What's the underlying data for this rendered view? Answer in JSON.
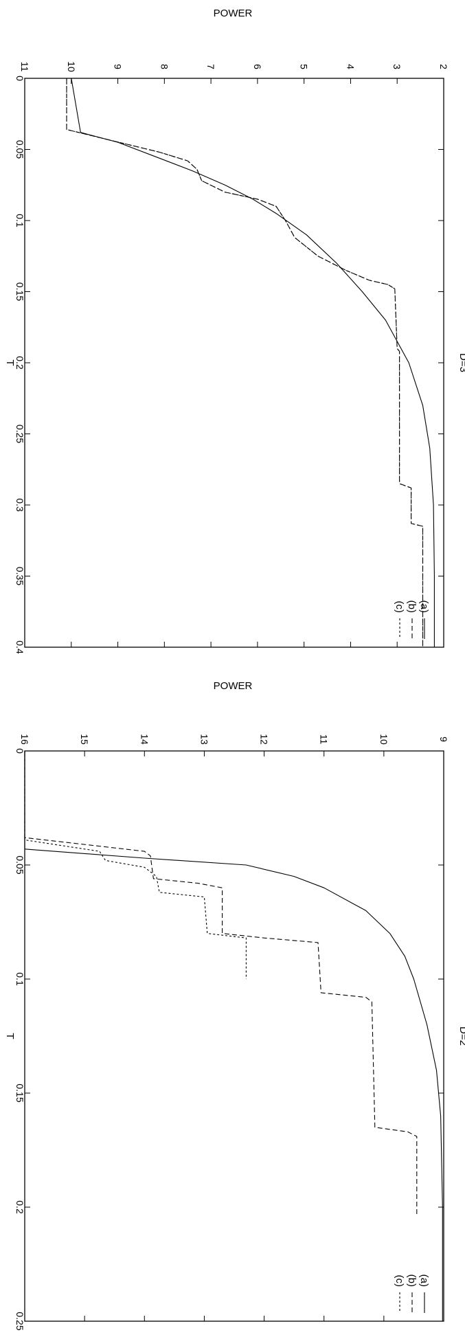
{
  "figure": {
    "panels": [
      {
        "title": "D=3",
        "xlabel": "T",
        "ylabel": "POWER",
        "xticks": [
          "0",
          "0.05",
          "0.1",
          "0.15",
          "0.2",
          "0.25",
          "0.3",
          "0.35",
          "0.4"
        ],
        "yticks": [
          "2",
          "3",
          "4",
          "5",
          "6",
          "7",
          "8",
          "9",
          "10",
          "11"
        ],
        "legend": [
          "(a)",
          "(b)",
          "(c)"
        ]
      },
      {
        "title": "D=2",
        "xlabel": "T",
        "ylabel": "POWER",
        "xticks": [
          "0",
          "0.05",
          "0.1",
          "0.15",
          "0.2",
          "0.25"
        ],
        "yticks": [
          "9",
          "10",
          "11",
          "12",
          "13",
          "14",
          "15",
          "16"
        ],
        "legend": [
          "(a)",
          "(b)",
          "(c)"
        ]
      }
    ]
  },
  "chart_data": [
    {
      "type": "line",
      "title": "D=3",
      "xlabel": "T",
      "ylabel": "POWER",
      "xlim": [
        0,
        0.4
      ],
      "ylim": [
        2,
        11
      ],
      "rotated": "90deg-clockwise",
      "legend_position": "bottom-right (rotated)",
      "grid": false,
      "series": [
        {
          "name": "(a)",
          "dash": "solid",
          "x": [
            0,
            0.038,
            0.045,
            0.055,
            0.065,
            0.075,
            0.085,
            0.095,
            0.11,
            0.13,
            0.15,
            0.17,
            0.2,
            0.23,
            0.26,
            0.3,
            0.35,
            0.4
          ],
          "y": [
            10.0,
            9.8,
            9.0,
            8.2,
            7.4,
            6.7,
            6.1,
            5.6,
            4.95,
            4.3,
            3.75,
            3.25,
            2.75,
            2.45,
            2.3,
            2.22,
            2.2,
            2.2
          ]
        },
        {
          "name": "(b)",
          "dash": "long-dash",
          "x": [
            0,
            0.036,
            0.044,
            0.052,
            0.058,
            0.064,
            0.072,
            0.08,
            0.085,
            0.09,
            0.1,
            0.112,
            0.125,
            0.135,
            0.142,
            0.145,
            0.148,
            0.19,
            0.192,
            0.285,
            0.288,
            0.313,
            0.315,
            0.4
          ],
          "y": [
            10.1,
            10.1,
            9.1,
            8.1,
            7.5,
            7.3,
            7.2,
            6.7,
            6.0,
            5.6,
            5.4,
            5.2,
            4.7,
            4.1,
            3.6,
            3.2,
            3.05,
            3.0,
            2.95,
            2.95,
            2.7,
            2.7,
            2.45,
            2.45
          ]
        },
        {
          "name": "(c)",
          "dash": "short-dash",
          "x": [
            0,
            0.036,
            0.044,
            0.052,
            0.058,
            0.064,
            0.072,
            0.08,
            0.085,
            0.09,
            0.1,
            0.112,
            0.125,
            0.135,
            0.142,
            0.145,
            0.148,
            0.19,
            0.192,
            0.285,
            0.288,
            0.313,
            0.315,
            0.4
          ],
          "y": [
            10.1,
            10.1,
            9.1,
            8.1,
            7.5,
            7.3,
            7.2,
            6.7,
            6.0,
            5.6,
            5.4,
            5.2,
            4.7,
            4.1,
            3.6,
            3.2,
            3.05,
            3.0,
            2.95,
            2.95,
            2.7,
            2.7,
            2.45,
            2.45
          ]
        }
      ]
    },
    {
      "type": "line",
      "title": "D=2",
      "xlabel": "T",
      "ylabel": "POWER",
      "xlim": [
        0,
        0.25
      ],
      "ylim": [
        9,
        16
      ],
      "rotated": "90deg-clockwise",
      "legend_position": "bottom-right (rotated)",
      "grid": false,
      "series": [
        {
          "name": "(a)",
          "dash": "solid",
          "x": [
            0,
            0.043,
            0.047,
            0.05,
            0.055,
            0.06,
            0.07,
            0.08,
            0.09,
            0.1,
            0.12,
            0.14,
            0.16,
            0.2,
            0.25
          ],
          "y": [
            16.0,
            16.0,
            14.0,
            12.3,
            11.5,
            11.0,
            10.3,
            9.9,
            9.65,
            9.5,
            9.28,
            9.12,
            9.05,
            9.02,
            9.02
          ]
        },
        {
          "name": "(b)",
          "dash": "long-dash",
          "x": [
            0,
            0.038,
            0.044,
            0.046,
            0.056,
            0.058,
            0.06,
            0.08,
            0.082,
            0.084,
            0.106,
            0.108,
            0.11,
            0.165,
            0.167,
            0.169,
            0.203
          ],
          "y": [
            16.0,
            16.0,
            14.0,
            13.9,
            13.85,
            13.1,
            12.7,
            12.7,
            12.0,
            11.1,
            11.05,
            10.3,
            10.2,
            10.15,
            9.6,
            9.45,
            9.45
          ]
        },
        {
          "name": "(c)",
          "dash": "short-dash",
          "x": [
            0,
            0.039,
            0.044,
            0.048,
            0.051,
            0.055,
            0.062,
            0.064,
            0.08,
            0.082,
            0.083,
            0.1
          ],
          "y": [
            16.0,
            16.0,
            14.75,
            14.65,
            14.0,
            13.8,
            13.75,
            13.0,
            12.95,
            12.3,
            12.3,
            12.3
          ]
        }
      ]
    }
  ]
}
